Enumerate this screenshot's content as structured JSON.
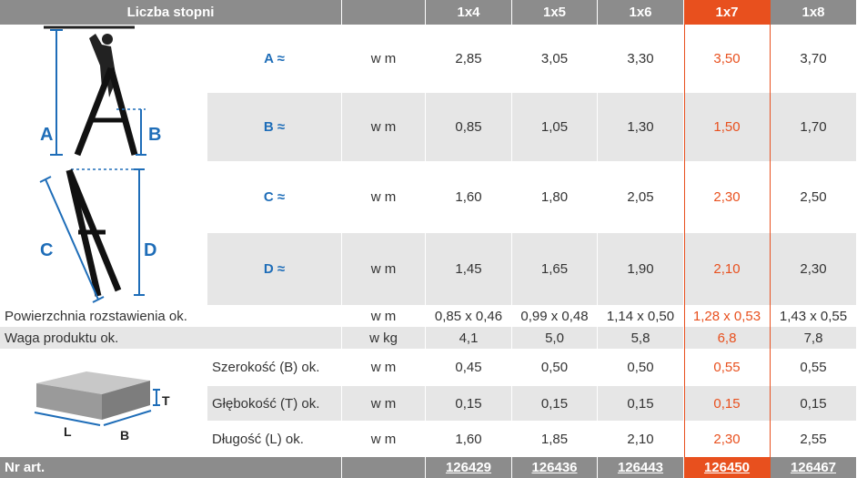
{
  "header": {
    "title": "Liczba stopni",
    "columns": [
      "1x4",
      "1x5",
      "1x6",
      "1x7",
      "1x8"
    ]
  },
  "ladder_rows": [
    {
      "label": "A ≈",
      "unit": "w m",
      "values": [
        "2,85",
        "3,05",
        "3,30",
        "3,50",
        "3,70"
      ]
    },
    {
      "label": "B ≈",
      "unit": "w m",
      "values": [
        "0,85",
        "1,05",
        "1,30",
        "1,50",
        "1,70"
      ]
    },
    {
      "label": "C ≈",
      "unit": "w m",
      "values": [
        "1,60",
        "1,80",
        "2,05",
        "2,30",
        "2,50"
      ]
    },
    {
      "label": "D ≈",
      "unit": "w m",
      "values": [
        "1,45",
        "1,65",
        "1,90",
        "2,10",
        "2,30"
      ]
    }
  ],
  "general_rows": [
    {
      "label": "Powierzchnia rozstawienia ok.",
      "unit": "w m",
      "values": [
        "0,85 x 0,46",
        "0,99 x 0,48",
        "1,14 x 0,50",
        "1,28 x 0,53",
        "1,43 x 0,55"
      ]
    },
    {
      "label": "Waga produktu ok.",
      "unit": "w kg",
      "values": [
        "4,1",
        "5,0",
        "5,8",
        "6,8",
        "7,8"
      ]
    }
  ],
  "size_rows": [
    {
      "label": "Szerokość (B) ok.",
      "unit": "w m",
      "values": [
        "0,45",
        "0,50",
        "0,50",
        "0,55",
        "0,55"
      ]
    },
    {
      "label": "Głębokość (T) ok.",
      "unit": "w m",
      "values": [
        "0,15",
        "0,15",
        "0,15",
        "0,15",
        "0,15"
      ]
    },
    {
      "label": "Długość (L) ok.",
      "unit": "w m",
      "values": [
        "1,60",
        "1,85",
        "2,10",
        "2,30",
        "2,55"
      ]
    }
  ],
  "footer": {
    "label": "Nr art.",
    "values": [
      "126429",
      "126436",
      "126443",
      "126450",
      "126467"
    ]
  },
  "diagram_labels": {
    "ladder": [
      "A",
      "B",
      "C",
      "D"
    ],
    "box": [
      "T",
      "L",
      "B"
    ]
  }
}
